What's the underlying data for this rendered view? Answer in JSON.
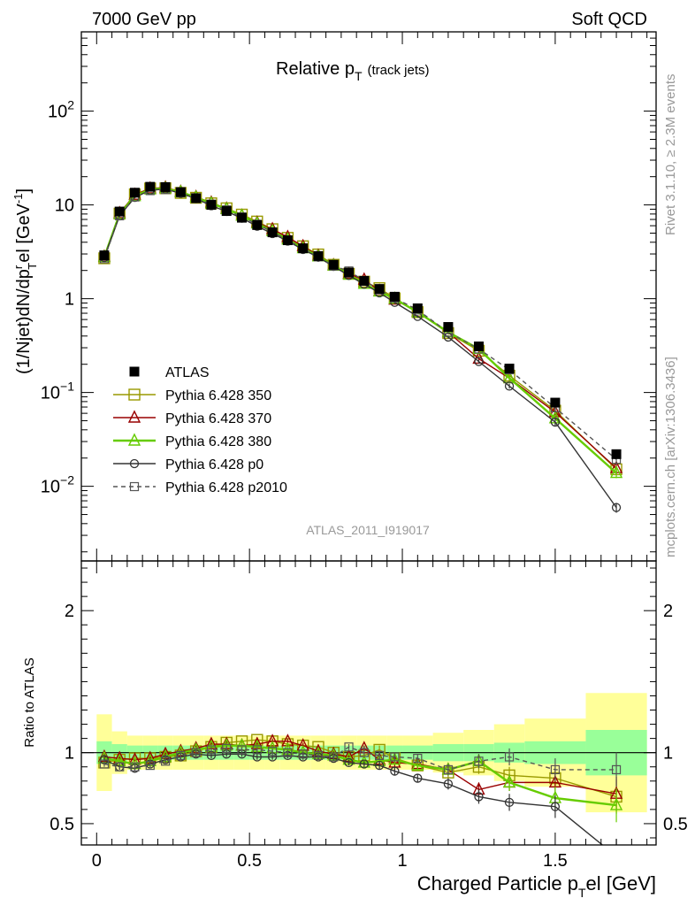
{
  "header": {
    "energy_label": "7000 GeV pp",
    "process_label": "Soft QCD"
  },
  "side_labels": {
    "rivet": "Rivet 3.1.10, ≥ 2.3M events",
    "mcplots": "mcplots.cern.ch [arXiv:1306.3436]"
  },
  "chart_data": {
    "type": "line",
    "title": {
      "main": "Relative p",
      "sub": "T",
      "suffix": "(track jets)"
    },
    "analysis_label": "ATLAS_2011_I919017",
    "x_axis": {
      "label": "Charged Particle p",
      "label_sub": "T",
      "label_tail": "el [GeV]",
      "range": [
        -0.05,
        1.83
      ],
      "ticks": [
        "0",
        "0.5",
        "1",
        "1.5"
      ]
    },
    "y_axis": {
      "label": "(1/Njet)dN/dp",
      "label_sup": "r",
      "label_sub": "T",
      "label_tail": "el [GeV",
      "label_unit_sup": "-1",
      "label_end": "]",
      "scale": "log",
      "range": [
        0.0016,
        700
      ]
    },
    "ratio_axis": {
      "label": "Ratio to ATLAS",
      "range": [
        0.35,
        2.35
      ],
      "ticks": [
        "0.5",
        "1",
        "2"
      ]
    },
    "legend": {
      "placement": "bottom-left"
    },
    "x": [
      0.025,
      0.075,
      0.125,
      0.175,
      0.225,
      0.275,
      0.325,
      0.375,
      0.425,
      0.475,
      0.525,
      0.575,
      0.625,
      0.675,
      0.725,
      0.775,
      0.825,
      0.875,
      0.925,
      0.975,
      1.05,
      1.15,
      1.25,
      1.35,
      1.5,
      1.7
    ],
    "data": {
      "name": "ATLAS",
      "values": [
        2.9,
        8.5,
        13.5,
        15.6,
        15.5,
        13.7,
        11.8,
        10.0,
        8.6,
        7.3,
        6.1,
        5.1,
        4.2,
        3.45,
        2.85,
        2.3,
        1.9,
        1.55,
        1.27,
        1.05,
        0.79,
        0.5,
        0.31,
        0.18,
        0.078,
        0.022
      ],
      "band_x": [
        0,
        0.05,
        0.1,
        0.15,
        0.2,
        0.25,
        0.3,
        0.35,
        0.4,
        0.45,
        0.5,
        0.55,
        0.6,
        0.65,
        0.7,
        0.75,
        0.8,
        0.85,
        0.9,
        0.95,
        1.0,
        1.1,
        1.2,
        1.3,
        1.4,
        1.6,
        1.8
      ],
      "band_outer": [
        0.27,
        0.15,
        0.12,
        0.12,
        0.12,
        0.12,
        0.12,
        0.12,
        0.12,
        0.12,
        0.12,
        0.12,
        0.12,
        0.12,
        0.12,
        0.12,
        0.12,
        0.12,
        0.12,
        0.12,
        0.12,
        0.14,
        0.16,
        0.2,
        0.24,
        0.42
      ],
      "band_inner": [
        0.08,
        0.06,
        0.05,
        0.05,
        0.05,
        0.05,
        0.05,
        0.05,
        0.05,
        0.05,
        0.05,
        0.05,
        0.05,
        0.05,
        0.05,
        0.05,
        0.05,
        0.05,
        0.05,
        0.05,
        0.05,
        0.06,
        0.06,
        0.07,
        0.08,
        0.16
      ],
      "color": "#000000"
    },
    "series": [
      {
        "name": "Pythia 6.428 350",
        "color": "#999900",
        "marker": "square",
        "width": 1.4,
        "ratio": [
          0.93,
          0.95,
          0.96,
          0.96,
          0.97,
          0.98,
          1.01,
          1.04,
          1.07,
          1.08,
          1.09,
          1.08,
          1.06,
          1.05,
          1.04,
          1.0,
          0.97,
          0.98,
          1.02,
          0.96,
          0.91,
          0.86,
          0.9,
          0.84,
          0.82,
          0.69
        ],
        "ratio_err": [
          0.02,
          0.02,
          0.02,
          0.02,
          0.02,
          0.02,
          0.02,
          0.02,
          0.02,
          0.02,
          0.02,
          0.02,
          0.02,
          0.02,
          0.02,
          0.02,
          0.02,
          0.02,
          0.03,
          0.03,
          0.03,
          0.04,
          0.05,
          0.06,
          0.08,
          0.12
        ]
      },
      {
        "name": "Pythia 6.428 370",
        "color": "#990000",
        "marker": "triangle",
        "width": 1.4,
        "ratio": [
          0.97,
          0.96,
          0.95,
          0.96,
          0.99,
          1.01,
          1.03,
          1.06,
          1.06,
          1.05,
          1.06,
          1.08,
          1.08,
          1.05,
          1.01,
          0.99,
          0.97,
          1.03,
          0.95,
          0.93,
          0.92,
          0.88,
          0.74,
          0.79,
          0.79,
          0.71
        ],
        "ratio_err": [
          0.02,
          0.02,
          0.02,
          0.02,
          0.02,
          0.02,
          0.02,
          0.02,
          0.02,
          0.02,
          0.02,
          0.02,
          0.02,
          0.02,
          0.02,
          0.02,
          0.02,
          0.02,
          0.03,
          0.03,
          0.03,
          0.04,
          0.05,
          0.06,
          0.08,
          0.12
        ]
      },
      {
        "name": "Pythia 6.428 380",
        "color": "#66cc00",
        "marker": "triangle",
        "width": 2.4,
        "ratio": [
          0.96,
          0.94,
          0.92,
          0.94,
          0.97,
          1.0,
          1.02,
          1.04,
          1.05,
          1.05,
          1.04,
          1.03,
          1.02,
          1.0,
          0.99,
          0.98,
          0.95,
          0.93,
          0.94,
          0.95,
          0.91,
          0.88,
          0.94,
          0.79,
          0.68,
          0.63
        ],
        "ratio_err": [
          0.02,
          0.02,
          0.02,
          0.02,
          0.02,
          0.02,
          0.02,
          0.02,
          0.02,
          0.02,
          0.02,
          0.02,
          0.02,
          0.02,
          0.02,
          0.02,
          0.02,
          0.02,
          0.03,
          0.03,
          0.03,
          0.04,
          0.05,
          0.06,
          0.08,
          0.12
        ]
      },
      {
        "name": "Pythia 6.428 p0",
        "color": "#333333",
        "marker": "circle",
        "width": 1.4,
        "ratio": [
          0.95,
          0.9,
          0.89,
          0.92,
          0.95,
          0.97,
          0.99,
          0.98,
          0.99,
          0.99,
          0.97,
          0.97,
          0.98,
          0.97,
          0.97,
          0.96,
          0.93,
          0.92,
          0.91,
          0.87,
          0.82,
          0.78,
          0.69,
          0.65,
          0.62,
          0.27
        ],
        "ratio_err": [
          0.02,
          0.02,
          0.02,
          0.02,
          0.02,
          0.02,
          0.02,
          0.02,
          0.02,
          0.02,
          0.02,
          0.02,
          0.02,
          0.02,
          0.02,
          0.02,
          0.02,
          0.02,
          0.03,
          0.03,
          0.03,
          0.04,
          0.05,
          0.06,
          0.08,
          0.12
        ]
      },
      {
        "name": "Pythia 6.428 p2010",
        "color": "#555555",
        "marker": "square-small",
        "width": 1.4,
        "dashed": true,
        "ratio": [
          0.92,
          0.9,
          0.9,
          0.91,
          0.94,
          0.98,
          1.0,
          1.02,
          1.03,
          1.02,
          1.02,
          1.01,
          1.0,
          0.99,
          0.98,
          0.97,
          1.04,
          1.0,
          0.98,
          0.97,
          0.96,
          0.88,
          0.94,
          0.97,
          0.88,
          0.88
        ],
        "ratio_err": [
          0.02,
          0.02,
          0.02,
          0.02,
          0.02,
          0.02,
          0.02,
          0.02,
          0.02,
          0.02,
          0.02,
          0.02,
          0.02,
          0.02,
          0.02,
          0.02,
          0.02,
          0.02,
          0.03,
          0.03,
          0.03,
          0.04,
          0.05,
          0.06,
          0.08,
          0.12
        ]
      }
    ]
  }
}
